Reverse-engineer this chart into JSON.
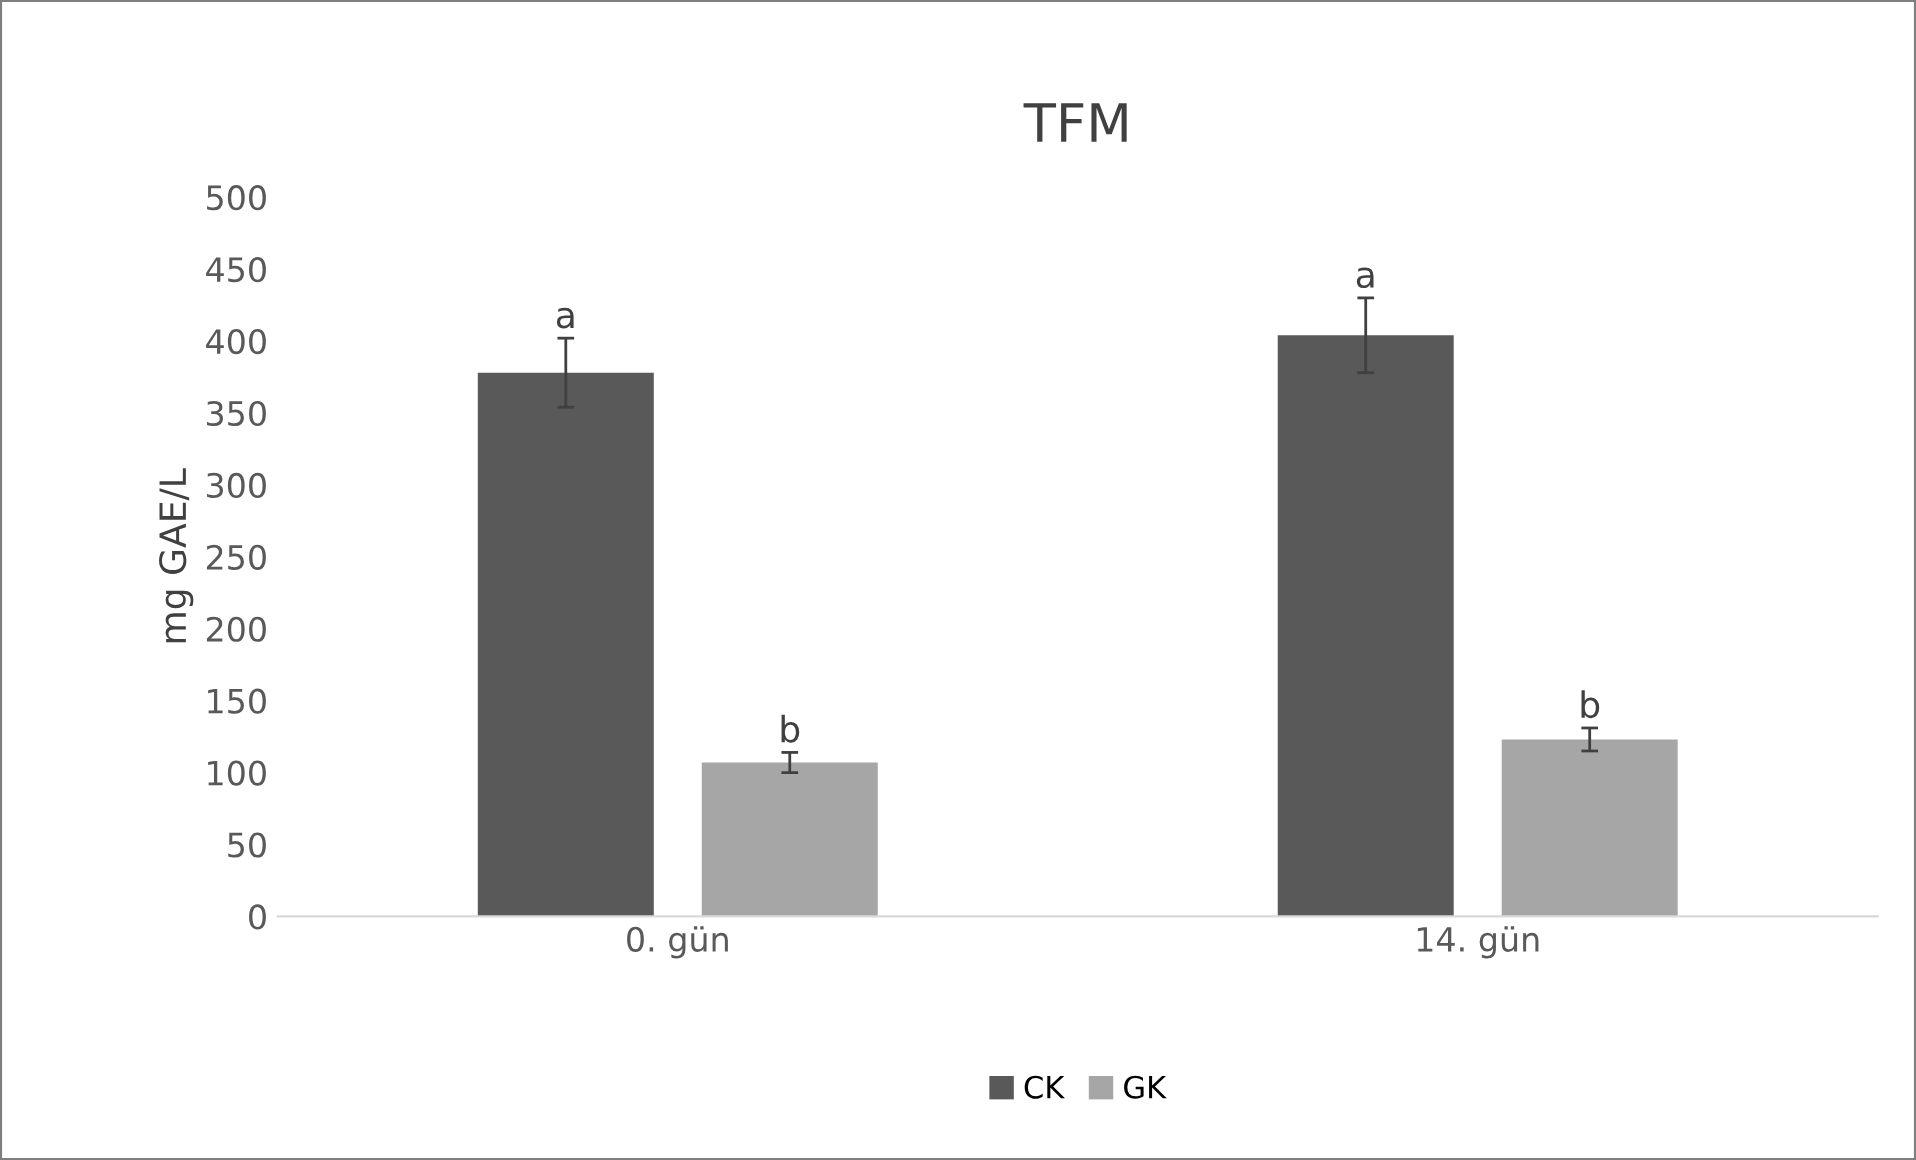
{
  "chart_data": {
    "type": "bar",
    "title": "TFM",
    "ylabel": "mg GAE/L",
    "categories": [
      "0. gün",
      "14. gün"
    ],
    "series": [
      {
        "name": "CK",
        "color": "#595959",
        "values": [
          378,
          404
        ],
        "errors": [
          24,
          26
        ]
      },
      {
        "name": "GK",
        "color": "#a6a6a6",
        "values": [
          107,
          123
        ],
        "errors": [
          7,
          8
        ]
      }
    ],
    "ylim": [
      0,
      500
    ],
    "yticks": [
      0,
      50,
      100,
      150,
      200,
      250,
      300,
      350,
      400,
      450,
      500
    ],
    "annotations": [
      "a",
      "b",
      "a",
      "b"
    ],
    "legend": "bottom",
    "grid": false
  }
}
